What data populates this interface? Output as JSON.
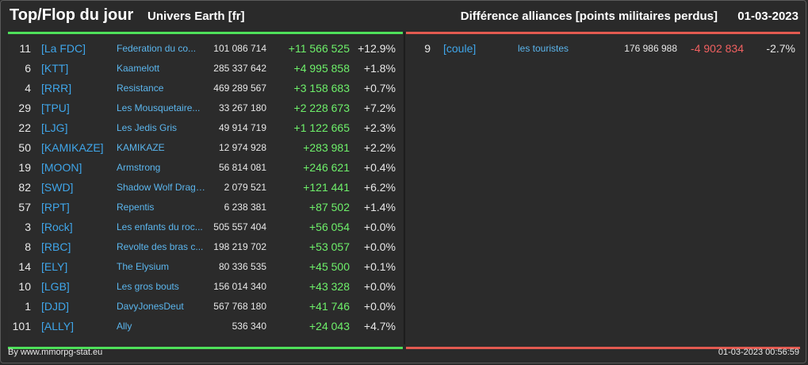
{
  "header": {
    "title": "Top/Flop du jour",
    "universe": "Univers Earth [fr]",
    "subtitle": "Différence alliances [points militaires perdus]",
    "date": "01-03-2023"
  },
  "top": [
    {
      "rank": "11",
      "tag": "[La FDC]",
      "name": "Federation du co...",
      "points": "101 086 714",
      "diff": "+11 566 525",
      "pct": "+12.9%"
    },
    {
      "rank": "6",
      "tag": "[KTT]",
      "name": "Kaamelott",
      "points": "285 337 642",
      "diff": "+4 995 858",
      "pct": "+1.8%"
    },
    {
      "rank": "4",
      "tag": "[RRR]",
      "name": "Resistance",
      "points": "469 289 567",
      "diff": "+3 158 683",
      "pct": "+0.7%"
    },
    {
      "rank": "29",
      "tag": "[TPU]",
      "name": "Les Mousquetaire...",
      "points": "33 267 180",
      "diff": "+2 228 673",
      "pct": "+7.2%"
    },
    {
      "rank": "22",
      "tag": "[LJG]",
      "name": "Les Jedis Gris",
      "points": "49 914 719",
      "diff": "+1 122 665",
      "pct": "+2.3%"
    },
    {
      "rank": "50",
      "tag": "[KAMIKAZE]",
      "name": "KAMIKAZE",
      "points": "12 974 928",
      "diff": "+283 981",
      "pct": "+2.2%"
    },
    {
      "rank": "19",
      "tag": "[MOON]",
      "name": "Armstrong",
      "points": "56 814 081",
      "diff": "+246 621",
      "pct": "+0.4%"
    },
    {
      "rank": "82",
      "tag": "[SWD]",
      "name": "Shadow Wolf Drago...",
      "points": "2 079 521",
      "diff": "+121 441",
      "pct": "+6.2%"
    },
    {
      "rank": "57",
      "tag": "[RPT]",
      "name": "Repentis",
      "points": "6 238 381",
      "diff": "+87 502",
      "pct": "+1.4%"
    },
    {
      "rank": "3",
      "tag": "[Rock]",
      "name": "Les enfants du roc...",
      "points": "505 557 404",
      "diff": "+56 054",
      "pct": "+0.0%"
    },
    {
      "rank": "8",
      "tag": "[RBC]",
      "name": "Revolte des bras c...",
      "points": "198 219 702",
      "diff": "+53 057",
      "pct": "+0.0%"
    },
    {
      "rank": "14",
      "tag": "[ELY]",
      "name": "The Elysium",
      "points": "80 336 535",
      "diff": "+45 500",
      "pct": "+0.1%"
    },
    {
      "rank": "10",
      "tag": "[LGB]",
      "name": "Les gros bouts",
      "points": "156 014 340",
      "diff": "+43 328",
      "pct": "+0.0%"
    },
    {
      "rank": "1",
      "tag": "[DJD]",
      "name": "DavyJonesDeut",
      "points": "567 768 180",
      "diff": "+41 746",
      "pct": "+0.0%"
    },
    {
      "rank": "101",
      "tag": "[ALLY]",
      "name": "Ally",
      "points": "536 340",
      "diff": "+24 043",
      "pct": "+4.7%"
    }
  ],
  "flop": [
    {
      "rank": "9",
      "tag": "[coule]",
      "name": "les touristes",
      "points": "176 986 988",
      "diff": "-4 902 834",
      "pct": "-2.7%"
    }
  ],
  "footer": {
    "credit": "By www.mmorpg-stat.eu",
    "timestamp": "01-03-2023 00:56:59"
  },
  "colors": {
    "positive": "#6ef06a",
    "negative": "#f06060",
    "tag": "#3fa6ea"
  }
}
